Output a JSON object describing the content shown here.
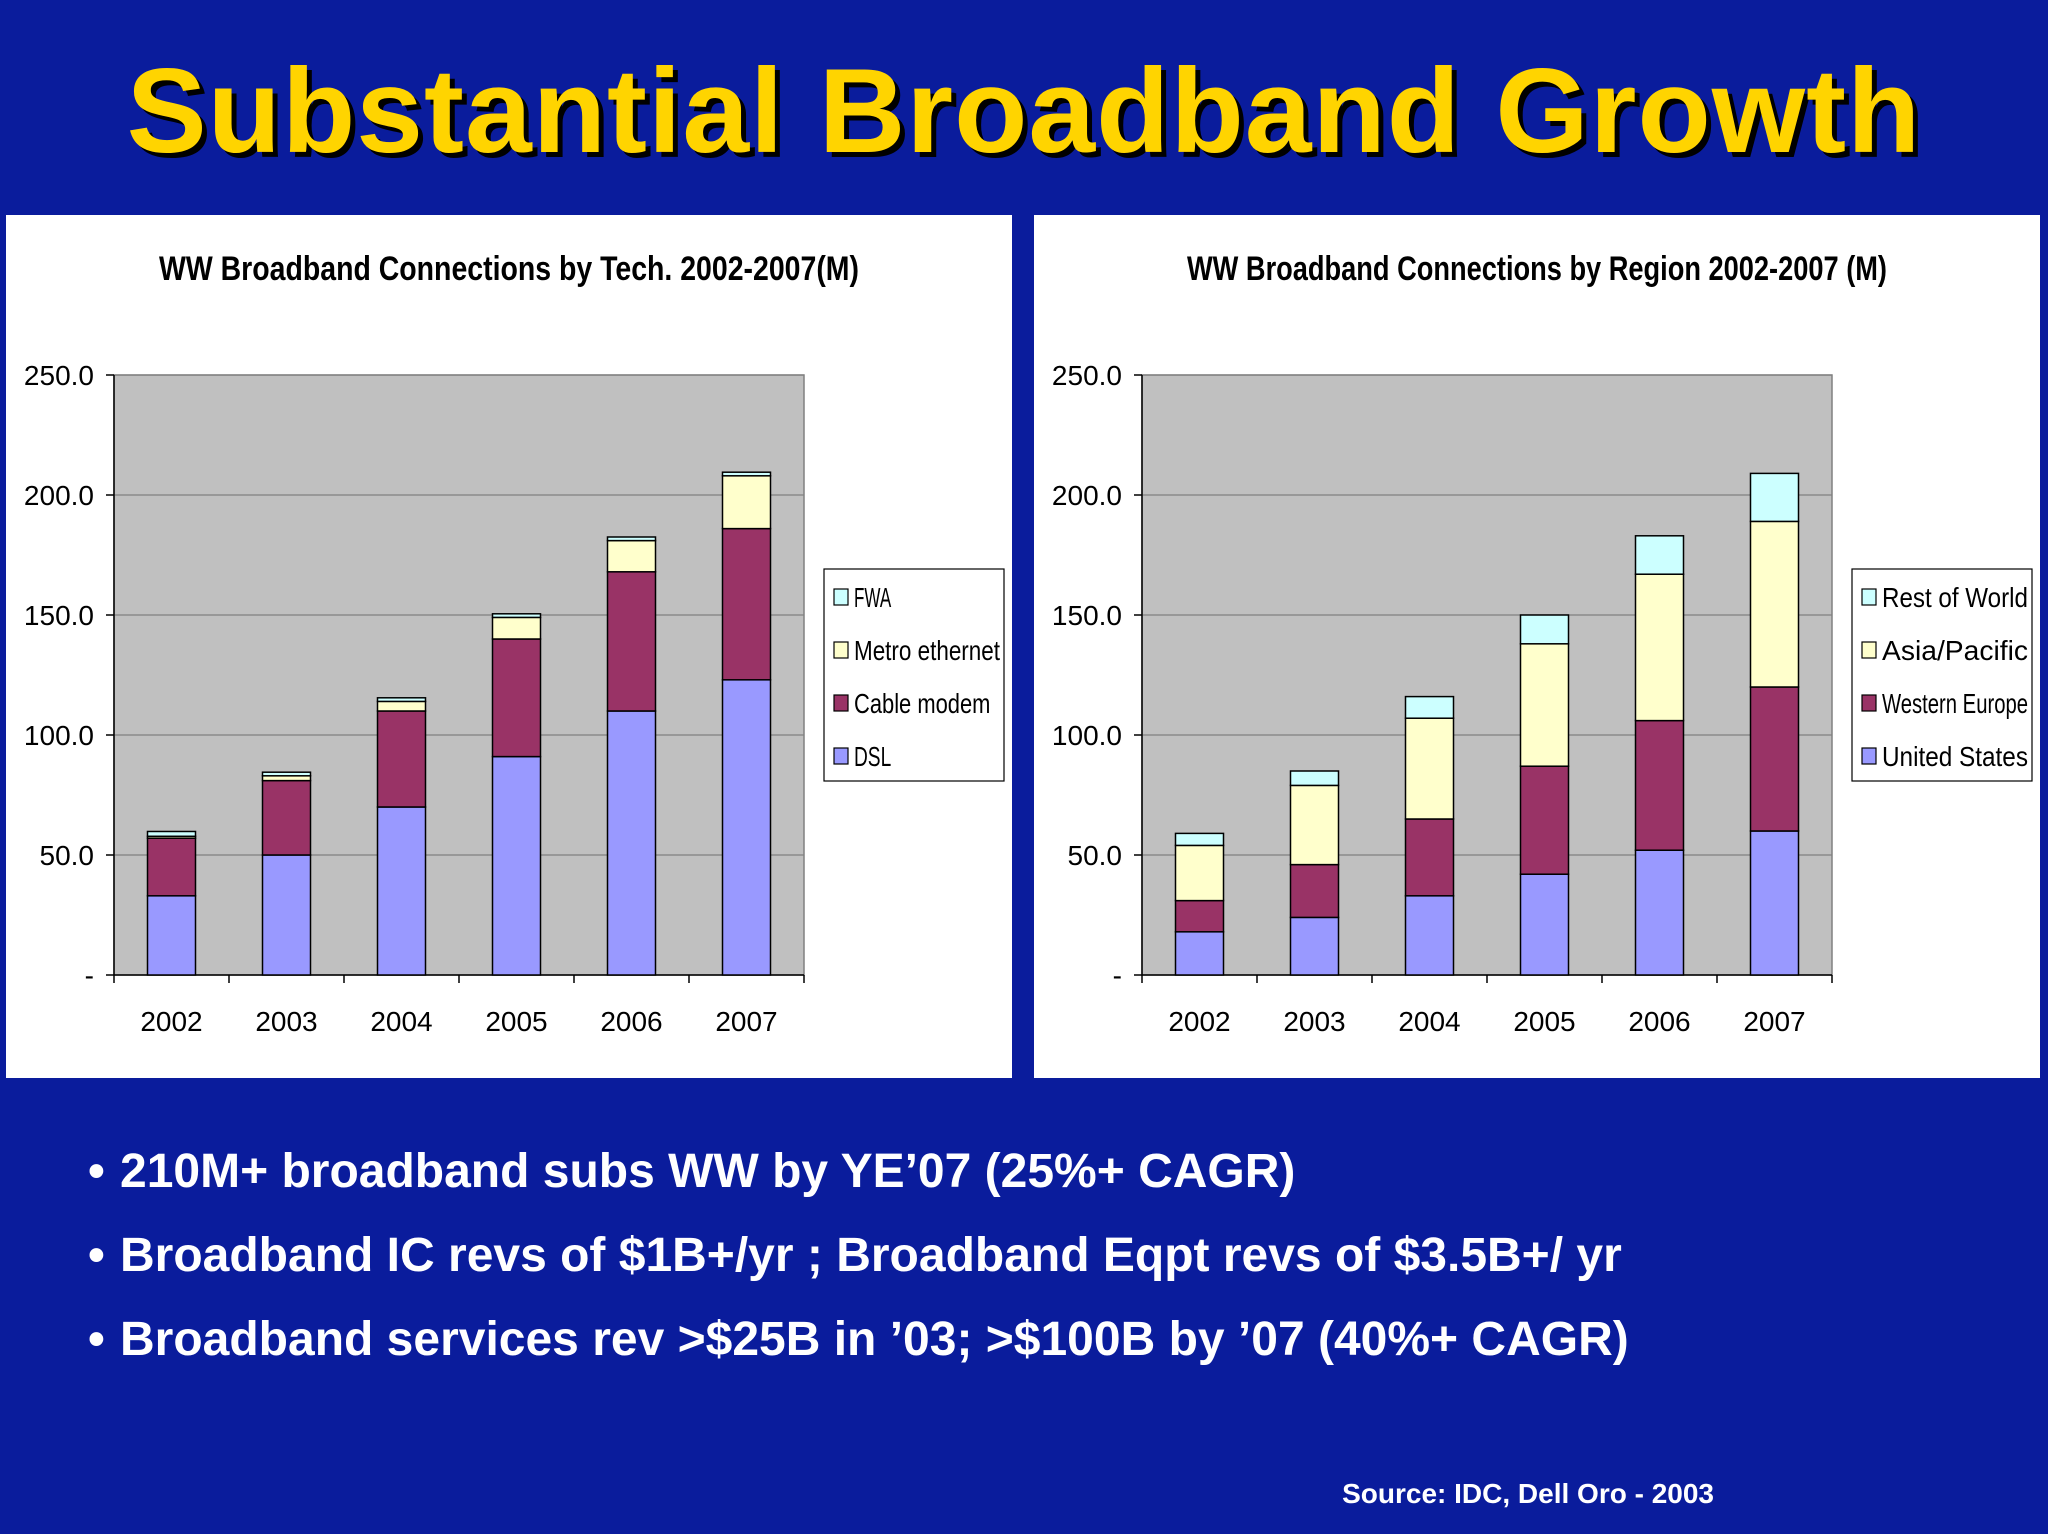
{
  "slide": {
    "title": "Substantial Broadband Growth",
    "bullets": [
      "210M+ broadband subs WW by YE’07 (25%+ CAGR)",
      "Broadband IC revs of $1B+/yr ; Broadband Eqpt revs of $3.5B+/ yr",
      "Broadband services rev >$25B in ’03;  >$100B by ’07 (40%+ CAGR)"
    ],
    "bullet_marker": "•",
    "source": "Source: IDC, Dell Oro - 2003"
  },
  "chart_data": [
    {
      "type": "bar",
      "stacked": true,
      "title": "WW Broadband Connections by Tech. 2002-2007(M)",
      "xlabel": "",
      "ylabel": "",
      "categories": [
        "2002",
        "2003",
        "2004",
        "2005",
        "2006",
        "2007"
      ],
      "ylim": [
        0,
        250
      ],
      "yticks": [
        "-",
        "50.0",
        "100.0",
        "150.0",
        "200.0",
        "250.0"
      ],
      "grid": true,
      "plot_background": "#c0c0c0",
      "legend_position": "right",
      "series": [
        {
          "name": "DSL",
          "color": "#9999ff",
          "values": [
            33,
            50,
            70,
            91,
            110,
            123
          ]
        },
        {
          "name": "Cable modem",
          "color": "#993366",
          "values": [
            24,
            31,
            40,
            49,
            58,
            63
          ]
        },
        {
          "name": "Metro ethernet",
          "color": "#ffffcc",
          "values": [
            0.8,
            2,
            4,
            9,
            13,
            22
          ]
        },
        {
          "name": "FWA",
          "color": "#ccffff",
          "values": [
            2,
            1.5,
            1.5,
            1.5,
            1.5,
            1.5
          ]
        }
      ]
    },
    {
      "type": "bar",
      "stacked": true,
      "title": "WW Broadband Connections by Region 2002-2007 (M)",
      "xlabel": "",
      "ylabel": "",
      "categories": [
        "2002",
        "2003",
        "2004",
        "2005",
        "2006",
        "2007"
      ],
      "ylim": [
        0,
        250
      ],
      "yticks": [
        "-",
        "50.0",
        "100.0",
        "150.0",
        "200.0",
        "250.0"
      ],
      "grid": true,
      "plot_background": "#c0c0c0",
      "legend_position": "right",
      "series": [
        {
          "name": "United States",
          "color": "#9999ff",
          "values": [
            18,
            24,
            33,
            42,
            52,
            60
          ]
        },
        {
          "name": "Western Europe",
          "color": "#993366",
          "values": [
            13,
            22,
            32,
            45,
            54,
            60
          ]
        },
        {
          "name": "Asia/Pacific",
          "color": "#ffffcc",
          "values": [
            23,
            33,
            42,
            51,
            61,
            69
          ]
        },
        {
          "name": "Rest of World",
          "color": "#ccffff",
          "values": [
            5,
            6,
            9,
            12,
            16,
            20
          ]
        }
      ]
    }
  ]
}
